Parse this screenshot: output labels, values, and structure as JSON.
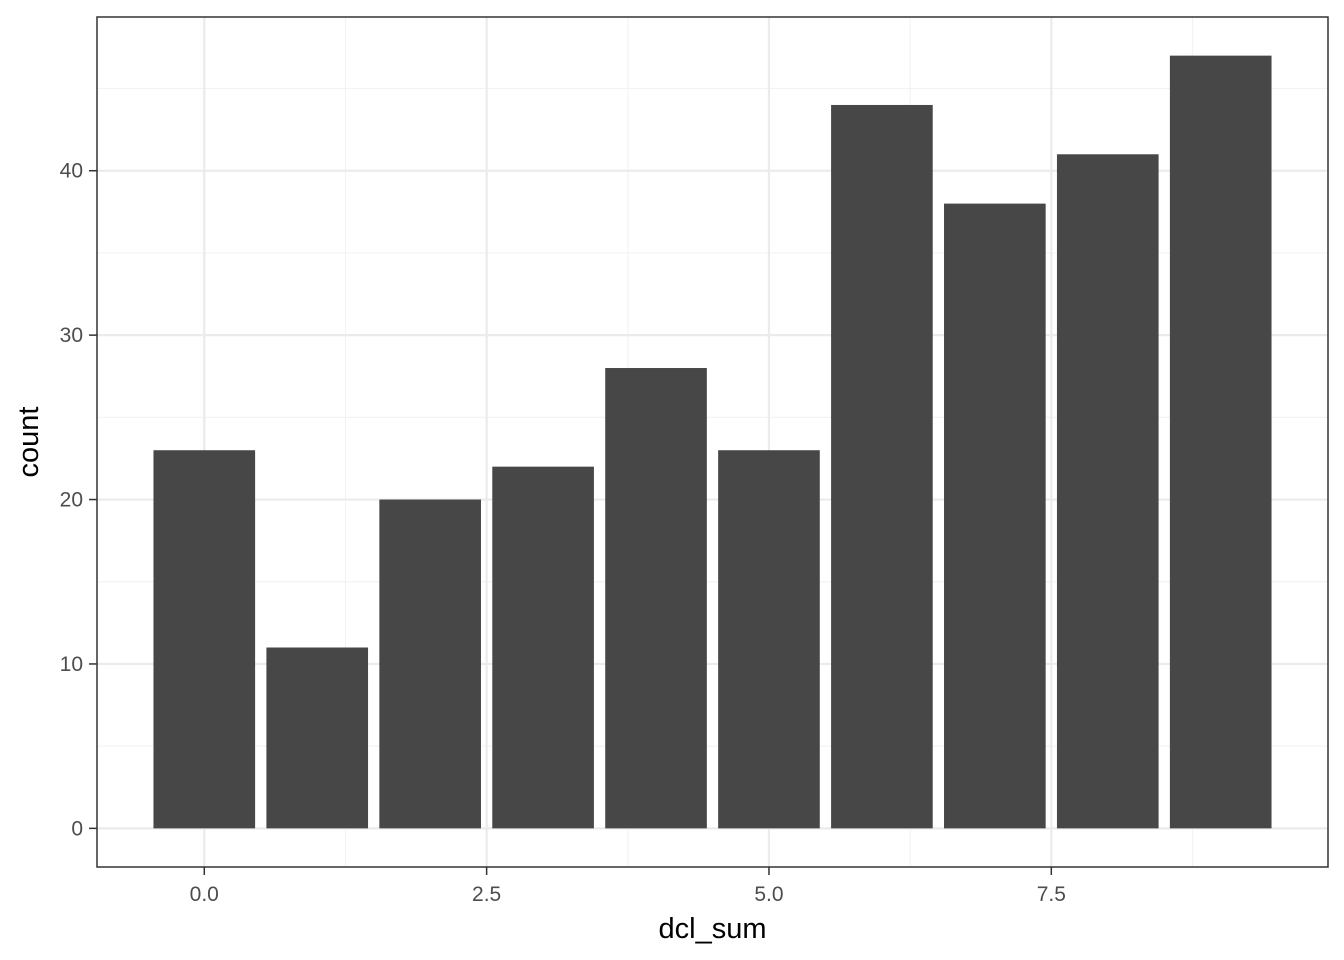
{
  "chart_data": {
    "type": "bar",
    "x": [
      0,
      1,
      2,
      3,
      4,
      5,
      6,
      7,
      8,
      9
    ],
    "values": [
      23,
      11,
      20,
      22,
      28,
      23,
      44,
      38,
      41,
      47
    ],
    "xlabel": "dcl_sum",
    "ylabel": "count",
    "xlim": [
      -0.95,
      9.95
    ],
    "ylim": [
      -2.35,
      49.35
    ],
    "x_ticks": [
      0,
      2.5,
      5,
      7.5
    ],
    "x_tick_labels": [
      "0.0",
      "2.5",
      "5.0",
      "7.5"
    ],
    "y_ticks": [
      0,
      10,
      20,
      30,
      40
    ],
    "y_tick_labels": [
      "0",
      "10",
      "20",
      "30",
      "40"
    ],
    "bar_width": 0.9,
    "grid": true,
    "theme": "bw",
    "colors": {
      "bar": "#474747",
      "grid_major": "#ebebeb",
      "grid_minor": "#f3f3f3",
      "panel_border": "#333333",
      "tick_text": "#4d4d4d"
    }
  }
}
